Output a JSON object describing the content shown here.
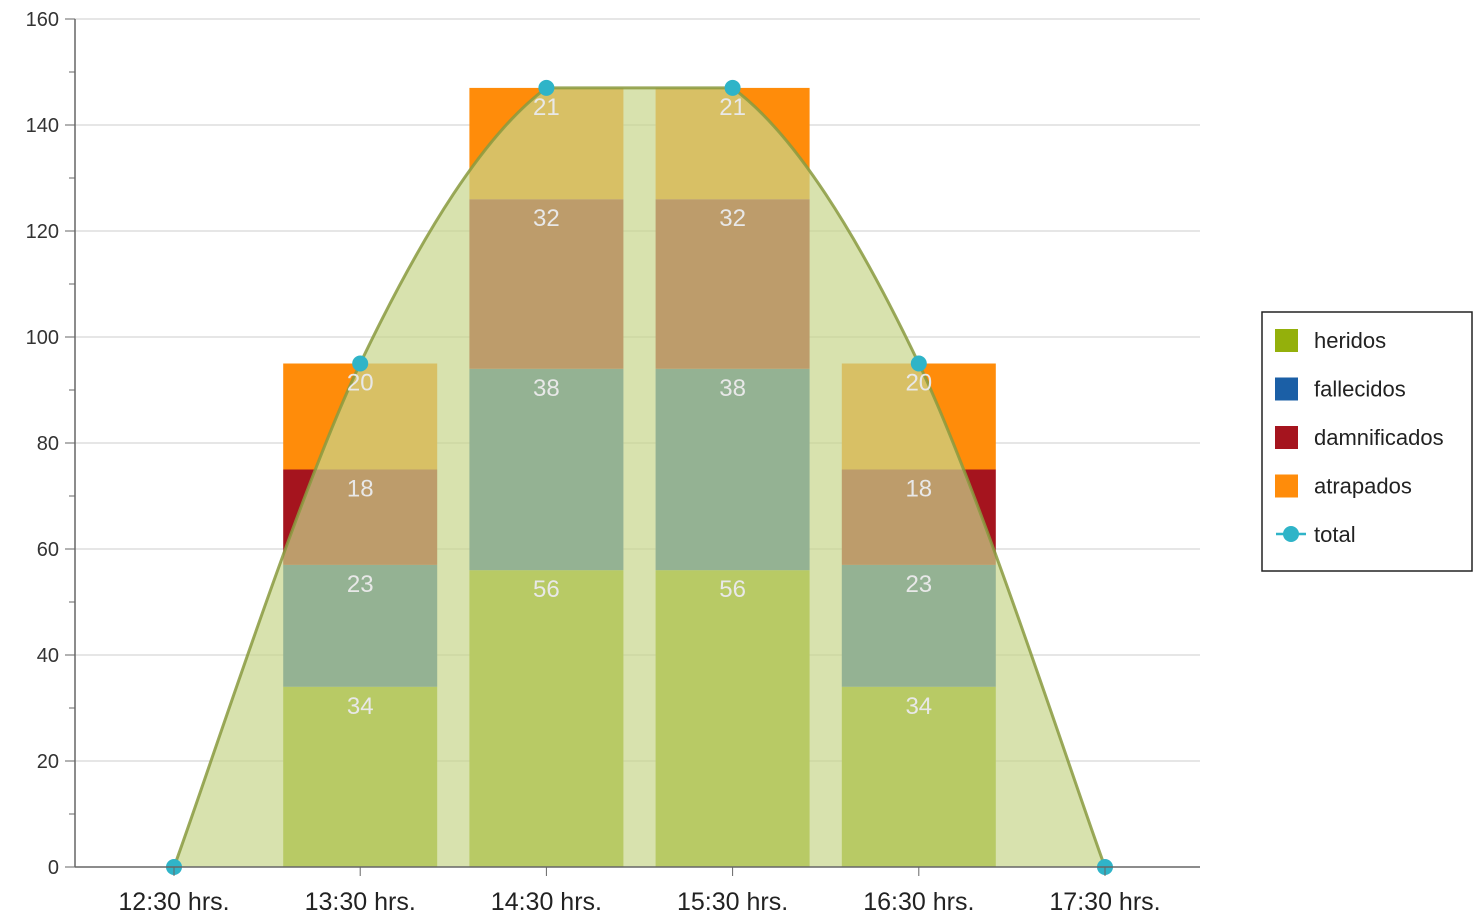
{
  "chart_data": {
    "type": "bar",
    "stacked": true,
    "categories": [
      "12:30 hrs.",
      "13:30 hrs.",
      "14:30 hrs.",
      "15:30 hrs.",
      "16:30 hrs.",
      "17:30 hrs."
    ],
    "series": [
      {
        "name": "heridos",
        "color": "#94b00b",
        "values": [
          0,
          34,
          56,
          56,
          34,
          0
        ]
      },
      {
        "name": "fallecidos",
        "color": "#1b5fa6",
        "values": [
          0,
          23,
          38,
          38,
          23,
          0
        ]
      },
      {
        "name": "damnificados",
        "color": "#a5141e",
        "values": [
          0,
          18,
          32,
          32,
          18,
          0
        ]
      },
      {
        "name": "atrapados",
        "color": "#ff8c0a",
        "values": [
          0,
          20,
          21,
          21,
          20,
          0
        ]
      }
    ],
    "overlay": {
      "type": "area",
      "name": "total",
      "color": "#2fb4c8",
      "fill": "#c8d68c",
      "line": "#8a9a40",
      "values": [
        0,
        95,
        147,
        147,
        95,
        0
      ]
    },
    "ylim": [
      0,
      160
    ],
    "yticks": [
      0,
      20,
      40,
      60,
      80,
      100,
      120,
      140,
      160
    ],
    "grid": true,
    "legend_position": "right"
  }
}
